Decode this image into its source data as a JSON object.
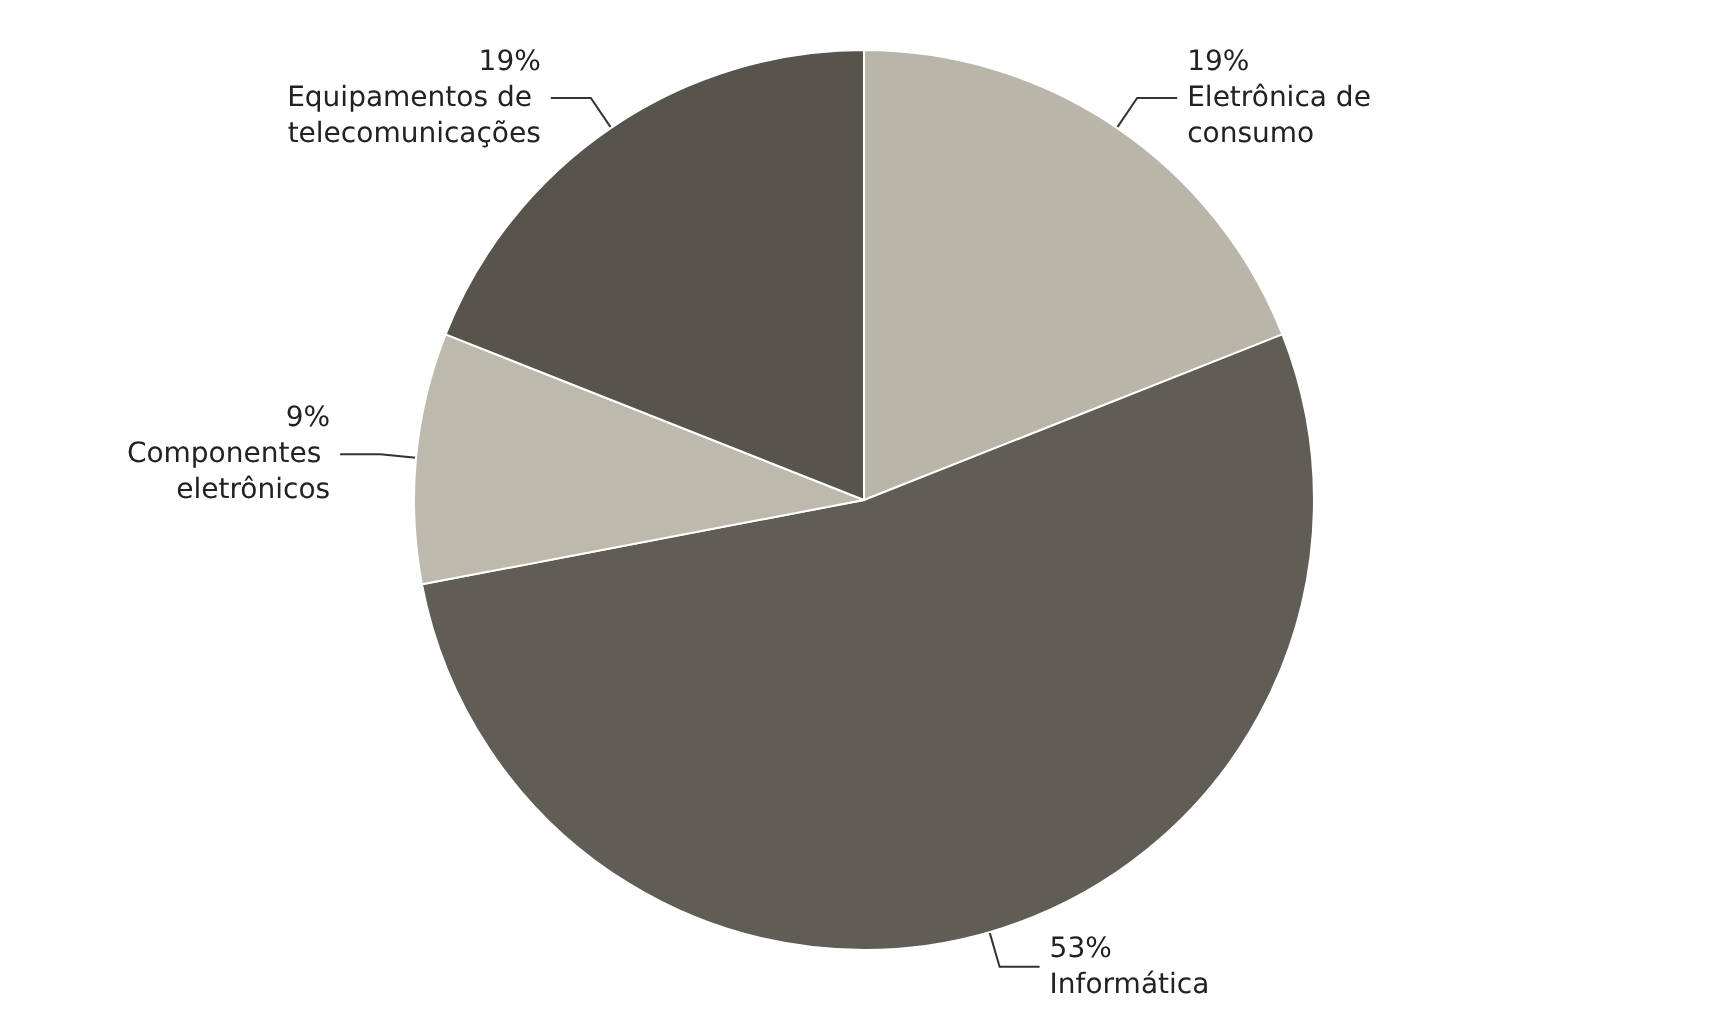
{
  "chart_data": {
    "type": "pie",
    "categories": [
      "Eletrônica de consumo",
      "Informática",
      "Componentes eletrônicos",
      "Equipamentos de telecomunicações"
    ],
    "values": [
      19,
      53,
      9,
      19
    ],
    "colors": [
      "#b9b5a9",
      "#5f5d55",
      "#bdb9ad",
      "#56544c"
    ],
    "value_labels": [
      "19%",
      "53%",
      "9%",
      "19%"
    ],
    "legend": false
  }
}
